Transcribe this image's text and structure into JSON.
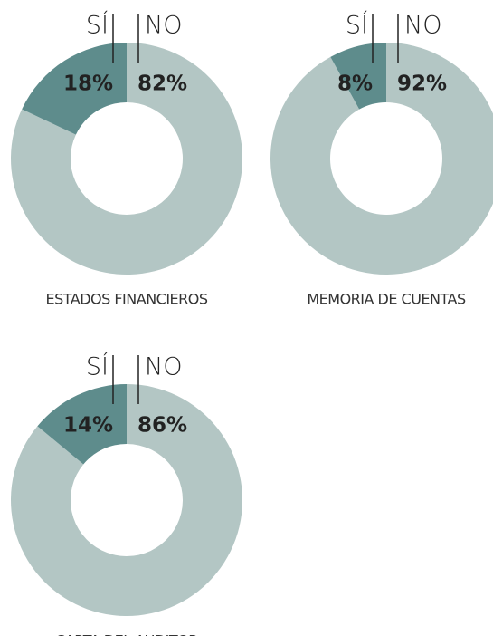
{
  "chart_data": [
    {
      "type": "pie",
      "title": "ESTADOS FINANCIEROS",
      "categories": [
        "SÍ",
        "NO"
      ],
      "values": [
        18,
        82
      ],
      "value_labels": [
        "18%",
        "82%"
      ],
      "colors": [
        "#5e8c8c",
        "#b3c6c4"
      ]
    },
    {
      "type": "pie",
      "title": "MEMORIA DE CUENTAS",
      "categories": [
        "SÍ",
        "NO"
      ],
      "values": [
        8,
        92
      ],
      "value_labels": [
        "8%",
        "92%"
      ],
      "colors": [
        "#5e8c8c",
        "#b3c6c4"
      ]
    },
    {
      "type": "pie",
      "title": "CARTA DEL AUDITOR",
      "categories": [
        "SÍ",
        "NO"
      ],
      "values": [
        14,
        86
      ],
      "value_labels": [
        "14%",
        "86%"
      ],
      "colors": [
        "#5e8c8c",
        "#b3c6c4"
      ]
    }
  ]
}
